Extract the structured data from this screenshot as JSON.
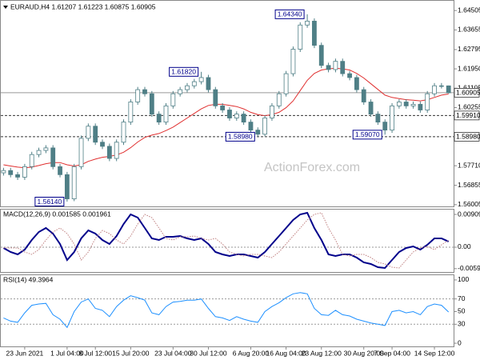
{
  "chart_data": [
    {
      "type": "candlestick",
      "title": "EURAUD,H4 1.61207 1.61223 1.60875 1.60905",
      "watermark": "ActionForex.com",
      "color": "#4f7f86",
      "categories": [
        null,
        null,
        null,
        "23 Jun 2021",
        null,
        null,
        null,
        null,
        null,
        "1 Jul 04:00",
        null,
        null,
        null,
        "8 Jul 12:00",
        null,
        null,
        null,
        null,
        "15 Jul 20:00",
        null,
        null,
        null,
        null,
        null,
        "23 Jul 04:00",
        null,
        null,
        null,
        null,
        "30 Jul 12:00",
        null,
        null,
        null,
        null,
        null,
        "6 Aug 20:00",
        null,
        null,
        null,
        null,
        "16 Aug 04:00",
        null,
        null,
        null,
        null,
        "23 Aug 12:00",
        null,
        null,
        null,
        null,
        null,
        "30 Aug 20:00",
        null,
        null,
        null,
        "7 Sep 04:00",
        null,
        null,
        null,
        null,
        null,
        "14 Sep 12:00",
        null,
        null
      ],
      "open": [
        1.574,
        1.575,
        1.5732,
        1.5721,
        1.5767,
        1.582,
        1.5838,
        1.5849,
        1.5767,
        1.5732,
        1.5626,
        1.5767,
        1.5891,
        1.5944,
        1.5874,
        1.5856,
        1.5803,
        1.5874,
        1.5962,
        1.605,
        1.6104,
        1.6086,
        1.5997,
        1.5962,
        1.6033,
        1.6086,
        1.6104,
        1.6121,
        1.6139,
        1.6157,
        1.6104,
        1.6033,
        1.6015,
        1.598,
        1.5997,
        1.5962,
        1.5927,
        1.5909,
        1.598,
        1.6033,
        1.6086,
        1.6174,
        1.6281,
        1.6387,
        1.6404,
        1.6298,
        1.621,
        1.6192,
        1.6228,
        1.6174,
        1.6157,
        1.6104,
        1.605,
        1.5997,
        1.5962,
        1.5927,
        1.6033,
        1.605,
        1.6033,
        1.604,
        1.6015,
        1.6086,
        1.6121,
        1.61207
      ],
      "high": [
        1.5762,
        1.5762,
        1.5744,
        1.5779,
        1.5832,
        1.585,
        1.5861,
        1.5861,
        1.5779,
        1.5744,
        1.5779,
        1.5903,
        1.5956,
        1.5956,
        1.5886,
        1.5868,
        1.5886,
        1.5974,
        1.6062,
        1.6116,
        1.6116,
        1.6098,
        1.6009,
        1.6045,
        1.6098,
        1.6116,
        1.6133,
        1.6151,
        1.6182,
        1.6169,
        1.6116,
        1.6045,
        1.6027,
        1.6009,
        1.6009,
        1.5974,
        1.5939,
        1.5992,
        1.6045,
        1.6098,
        1.6186,
        1.6293,
        1.6399,
        1.6434,
        1.6416,
        1.631,
        1.6222,
        1.624,
        1.624,
        1.6186,
        1.6169,
        1.6116,
        1.6062,
        1.6009,
        1.5974,
        1.6045,
        1.6062,
        1.6062,
        1.6052,
        1.6052,
        1.6098,
        1.6133,
        1.6133,
        1.61223
      ],
      "low": [
        1.5728,
        1.572,
        1.5709,
        1.5709,
        1.5755,
        1.5808,
        1.5826,
        1.5755,
        1.572,
        1.5614,
        1.5616,
        1.5755,
        1.5879,
        1.5862,
        1.5844,
        1.5791,
        1.5791,
        1.5862,
        1.595,
        1.6038,
        1.6074,
        1.5985,
        1.595,
        1.595,
        1.6021,
        1.6074,
        1.6092,
        1.6109,
        1.6127,
        1.6092,
        1.6021,
        1.6003,
        1.5968,
        1.5968,
        1.595,
        1.5915,
        1.5898,
        1.59,
        1.5968,
        1.6021,
        1.6074,
        1.6162,
        1.6269,
        1.6375,
        1.6286,
        1.6198,
        1.618,
        1.618,
        1.6162,
        1.6145,
        1.6092,
        1.6038,
        1.5985,
        1.595,
        1.5907,
        1.5915,
        1.6021,
        1.6021,
        1.6021,
        1.6003,
        1.6003,
        1.6074,
        1.6109,
        1.60875
      ],
      "close": [
        1.575,
        1.5732,
        1.5721,
        1.5767,
        1.582,
        1.5838,
        1.5849,
        1.5767,
        1.5732,
        1.5626,
        1.5767,
        1.5891,
        1.5944,
        1.5874,
        1.5856,
        1.5803,
        1.5874,
        1.5962,
        1.605,
        1.6104,
        1.6086,
        1.5997,
        1.5962,
        1.6033,
        1.6086,
        1.6104,
        1.6121,
        1.6139,
        1.6157,
        1.6104,
        1.6033,
        1.6015,
        1.598,
        1.5997,
        1.5962,
        1.5927,
        1.5909,
        1.598,
        1.6033,
        1.6086,
        1.6174,
        1.6281,
        1.6387,
        1.6404,
        1.6298,
        1.621,
        1.6192,
        1.6228,
        1.6174,
        1.6157,
        1.6104,
        1.605,
        1.5997,
        1.5962,
        1.5927,
        1.6033,
        1.605,
        1.6033,
        1.604,
        1.6015,
        1.6086,
        1.6121,
        1.61207,
        1.60905
      ],
      "overlay": {
        "color": "#e03030",
        "values": [
          1.5775,
          1.577,
          1.5765,
          1.5762,
          1.5765,
          1.5772,
          1.578,
          1.5785,
          1.5785,
          1.5775,
          1.577,
          1.5775,
          1.579,
          1.58,
          1.5808,
          1.5812,
          1.5818,
          1.583,
          1.585,
          1.5875,
          1.5895,
          1.5905,
          1.5912,
          1.5925,
          1.594,
          1.596,
          1.598,
          1.6,
          1.602,
          1.6035,
          1.604,
          1.604,
          1.6035,
          1.603,
          1.602,
          1.6005,
          1.5995,
          1.599,
          1.5995,
          1.6005,
          1.6025,
          1.6055,
          1.61,
          1.6145,
          1.6175,
          1.619,
          1.6195,
          1.6198,
          1.6195,
          1.619,
          1.6175,
          1.6155,
          1.613,
          1.6105,
          1.608,
          1.607,
          1.6065,
          1.606,
          1.6058,
          1.6055,
          1.606,
          1.607,
          1.608,
          1.6085
        ]
      },
      "ylim": [
        1.5593,
        1.6493
      ],
      "yticks": [
        1.64505,
        1.63655,
        1.62795,
        {
          "value": 1.6195,
          "label": "1.61950"
        },
        1.61105,
        1.60255,
        {
          "value": 1.5771,
          "label": "1.57710"
        },
        1.56855,
        1.56005
      ],
      "price_levels": [
        {
          "value": 1.60905,
          "label": "1.60905",
          "style": "solid"
        },
        {
          "value": 1.5991,
          "label": "1.59910",
          "style": "dashed"
        },
        {
          "value": 1.5898,
          "label": "1.58980",
          "style": "dashed"
        }
      ],
      "annotations": [
        {
          "value": 1.6434,
          "label": "1.64340"
        },
        {
          "value": 1.6182,
          "label": "1.61820"
        },
        {
          "value": 1.5898,
          "label": "1.58980"
        },
        {
          "value": 1.5614,
          "label": "1.56140"
        },
        {
          "value": 1.5907,
          "label": "1.59070"
        }
      ]
    },
    {
      "type": "line",
      "title": "MACD(12,26,9) 0.001585 0.001961",
      "series": [
        {
          "color": "#00008b",
          "style": "solid",
          "values": [
            -0.00022,
            -0.00133,
            -0.002,
            -0.00067,
            0.002,
            0.00422,
            0.00533,
            0.00377,
            0.00089,
            -0.00355,
            -0.00133,
            0.00244,
            0.00466,
            0.00377,
            0.002,
            0.00089,
            0.00311,
            0.00644,
            0.0091,
            0.00821,
            0.00533,
            0.00244,
            0.002,
            0.00289,
            0.00289,
            0.00311,
            0.00244,
            0.002,
            0.00244,
            0.00089,
            -0.00133,
            -0.002,
            -0.00244,
            -0.002,
            -0.002,
            -0.00244,
            -0.00289,
            -0.00133,
            0.00089,
            0.00311,
            0.00533,
            0.00755,
            0.0091,
            0.00955,
            0.00533,
            0.002,
            -0.002,
            -0.00244,
            -0.002,
            -0.002,
            -0.00289,
            -0.00422,
            -0.00466,
            -0.00555,
            -0.00577,
            -0.00355,
            -0.00133,
            -0.00022,
            0.00022,
            -0.00067,
            0.00067,
            0.00244,
            0.00244,
            0.001585
          ]
        },
        {
          "color": "#c08080",
          "style": "dotted",
          "values": [
            -0.0002,
            -0.0002,
            -0.00022,
            -0.00133,
            -0.002,
            -0.00067,
            0.002,
            0.00422,
            0.00533,
            0.00377,
            0.00089,
            -0.00355,
            -0.00133,
            0.00244,
            0.00466,
            0.00377,
            0.002,
            0.00089,
            0.00311,
            0.00644,
            0.0091,
            0.00821,
            0.00533,
            0.00244,
            0.002,
            0.00289,
            0.00289,
            0.00311,
            0.00244,
            0.002,
            0.00244,
            0.00089,
            -0.00133,
            -0.002,
            -0.00244,
            -0.002,
            -0.002,
            -0.00244,
            -0.00289,
            -0.00133,
            0.00089,
            0.00311,
            0.00533,
            0.00755,
            0.0091,
            0.00955,
            0.00533,
            0.002,
            -0.002,
            -0.00244,
            -0.002,
            -0.002,
            -0.00289,
            -0.00422,
            -0.00466,
            -0.00555,
            -0.00577,
            -0.00355,
            -0.00133,
            -0.00022,
            0.00022,
            -0.00067,
            0.00067,
            0.001961
          ]
        }
      ],
      "ylim": [
        -0.00688,
        0.01043
      ],
      "yticks": [
        0.009094,
        {
          "value": 0,
          "label": "0.00"
        },
        -0.005956
      ],
      "levels": [
        0
      ]
    },
    {
      "type": "line",
      "title": "RSI(14) 49.3964",
      "series": [
        {
          "color": "#1e90ff",
          "style": "solid",
          "values": [
            40,
            35,
            33,
            48,
            60,
            62,
            63,
            45,
            38,
            25,
            50,
            65,
            70,
            55,
            52,
            42,
            58,
            68,
            75,
            72,
            68,
            48,
            45,
            58,
            65,
            66,
            68,
            68,
            70,
            55,
            42,
            40,
            36,
            42,
            38,
            35,
            33,
            50,
            58,
            64,
            72,
            78,
            80,
            78,
            55,
            45,
            44,
            52,
            45,
            43,
            38,
            35,
            32,
            30,
            28,
            50,
            52,
            48,
            50,
            45,
            58,
            62,
            60,
            49.3964
          ]
        }
      ],
      "ylim": [
        -5,
        107.5
      ],
      "yticks": [
        100,
        70,
        50,
        30,
        0
      ],
      "levels": [
        70,
        30
      ]
    }
  ]
}
